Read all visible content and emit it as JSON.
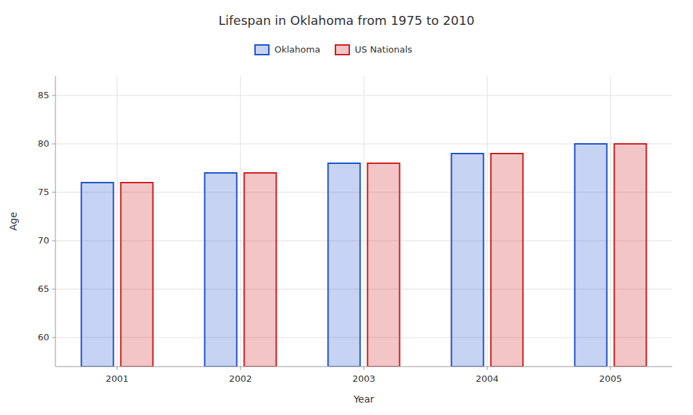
{
  "chart_data": {
    "type": "bar",
    "title": "Lifespan in Oklahoma from 1975 to 2010",
    "x_label": "Year",
    "y_label": "Age",
    "categories": [
      "2001",
      "2002",
      "2003",
      "2004",
      "2005"
    ],
    "series": [
      {
        "name": "Oklahoma",
        "color": "#1a4fcc",
        "values": [
          76,
          77,
          78,
          79,
          80
        ]
      },
      {
        "name": "US Nationals",
        "color": "#cc1a1a",
        "values": [
          76,
          77,
          78,
          79,
          80
        ]
      }
    ],
    "ylim": [
      57,
      87
    ],
    "yticks": [
      60,
      65,
      70,
      75,
      80,
      85
    ],
    "grid": true,
    "legend": "top"
  }
}
